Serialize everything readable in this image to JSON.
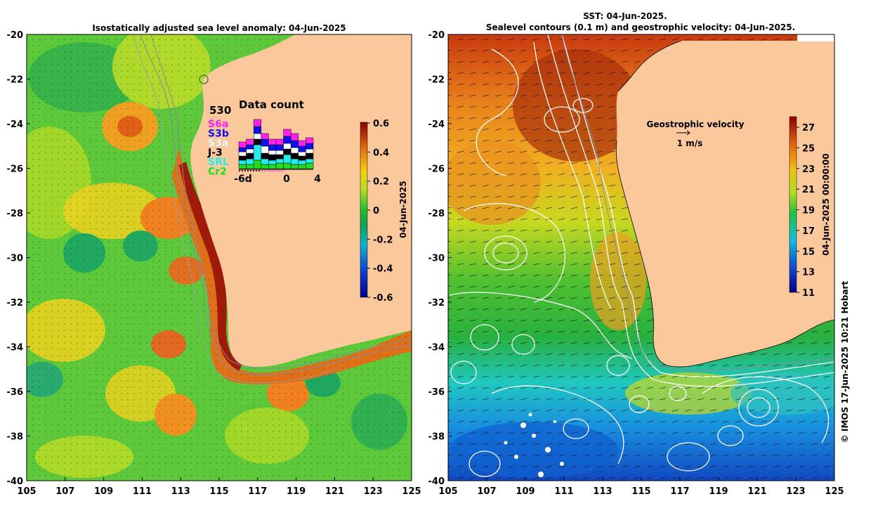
{
  "left_panel": {
    "title": "Isostatically adjusted sea level anomaly: 04-Jun-2025",
    "lon_ticks": [
      "105",
      "107",
      "109",
      "111",
      "113",
      "115",
      "117",
      "119",
      "121",
      "123",
      "125"
    ],
    "lat_ticks": [
      "-20",
      "-22",
      "-24",
      "-26",
      "-28",
      "-30",
      "-32",
      "-34",
      "-36",
      "-38",
      "-40"
    ],
    "colorbar": {
      "ticks": [
        "0.6",
        "0.4",
        "0.2",
        "0",
        "-0.2",
        "-0.4",
        "-0.6"
      ],
      "label": "04-Jun-2025",
      "range": [
        -0.6,
        0.6
      ]
    },
    "data_count": {
      "title": "Data count",
      "max_count": "530",
      "satellites": [
        {
          "name": "S6a",
          "color": "#ff22ee"
        },
        {
          "name": "S3b",
          "color": "#1010ee"
        },
        {
          "name": "S3a",
          "color": "#ffffff"
        },
        {
          "name": "J-3",
          "color": "#000000"
        },
        {
          "name": "SRL",
          "color": "#22eeee"
        },
        {
          "name": "Cr2",
          "color": "#22dd22"
        }
      ],
      "x_ticks": [
        "-6d",
        "0",
        "4"
      ]
    }
  },
  "right_panel": {
    "title_line1": "SST: 04-Jun-2025.",
    "title_line2": "Sealevel contours (0.1 m) and geostrophic velocity: 04-Jun-2025.",
    "lon_ticks": [
      "105",
      "107",
      "109",
      "111",
      "113",
      "115",
      "117",
      "119",
      "121",
      "123",
      "125"
    ],
    "lat_ticks": [
      "-20",
      "-22",
      "-24",
      "-26",
      "-28",
      "-30",
      "-32",
      "-34",
      "-36",
      "-38",
      "-40"
    ],
    "velocity_label": "Geostrophic velocity",
    "velocity_scale": "1 m/s",
    "colorbar": {
      "ticks": [
        "27",
        "25",
        "23",
        "21",
        "19",
        "17",
        "15",
        "13",
        "11"
      ],
      "label": "04-Jun-2025 00:00:00",
      "range": [
        11,
        28
      ]
    }
  },
  "credit": "© IMOS 17-Jun-2025 10:21 Hobart",
  "colors": {
    "land": "#fbc89c",
    "sla_background": "#5fca3a",
    "sst_cold": "#1a5fd0",
    "sst_warm": "#a52a10"
  }
}
